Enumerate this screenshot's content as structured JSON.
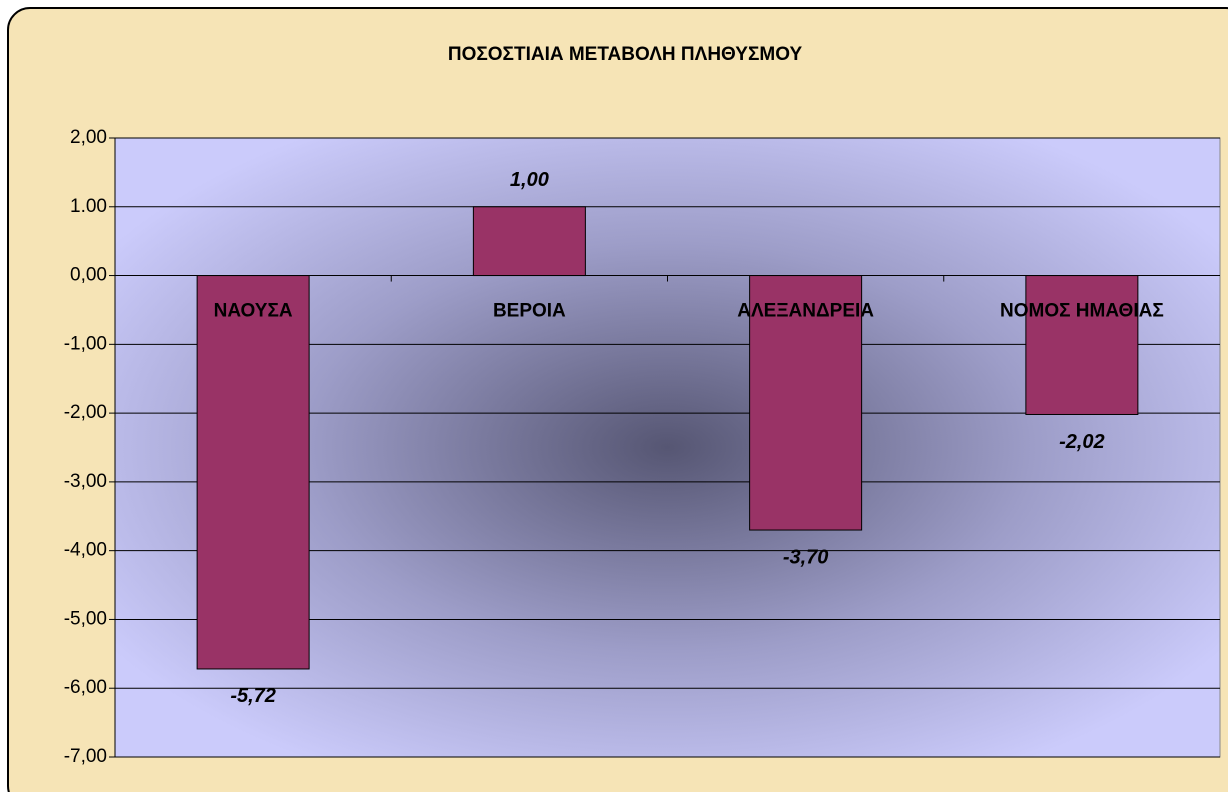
{
  "chart_data": {
    "type": "bar",
    "title": "ΠΟΣΟΣΤΙΑΙΑ ΜΕΤΑΒΟΛΗ ΠΛΗΘΥΣΜΟΥ",
    "categories": [
      "ΝΑΟΥΣΑ",
      "ΒΕΡΟΙΑ",
      "ΑΛΕΞΑΝΔΡΕΙΑ",
      "ΝΟΜΟΣ ΗΜΑΘΙΑΣ"
    ],
    "values": [
      -5.72,
      1.0,
      -3.7,
      -2.02
    ],
    "value_labels": [
      "-5,72",
      "1,00",
      "-3,70",
      "-2,02"
    ],
    "color": "#993366",
    "ylim": [
      -7,
      2
    ],
    "yticks": [
      {
        "value": 2,
        "label": "2,00"
      },
      {
        "value": 1,
        "label": "1.00"
      },
      {
        "value": 0,
        "label": "0,00"
      },
      {
        "value": -1,
        "label": "-1,00"
      },
      {
        "value": -2,
        "label": "-2,00"
      },
      {
        "value": -3,
        "label": "-3,00"
      },
      {
        "value": -4,
        "label": "-4,00"
      },
      {
        "value": -5,
        "label": "-5,00"
      },
      {
        "value": -6,
        "label": "-6,00"
      },
      {
        "value": -7,
        "label": "-7,00"
      }
    ],
    "grid": true
  }
}
